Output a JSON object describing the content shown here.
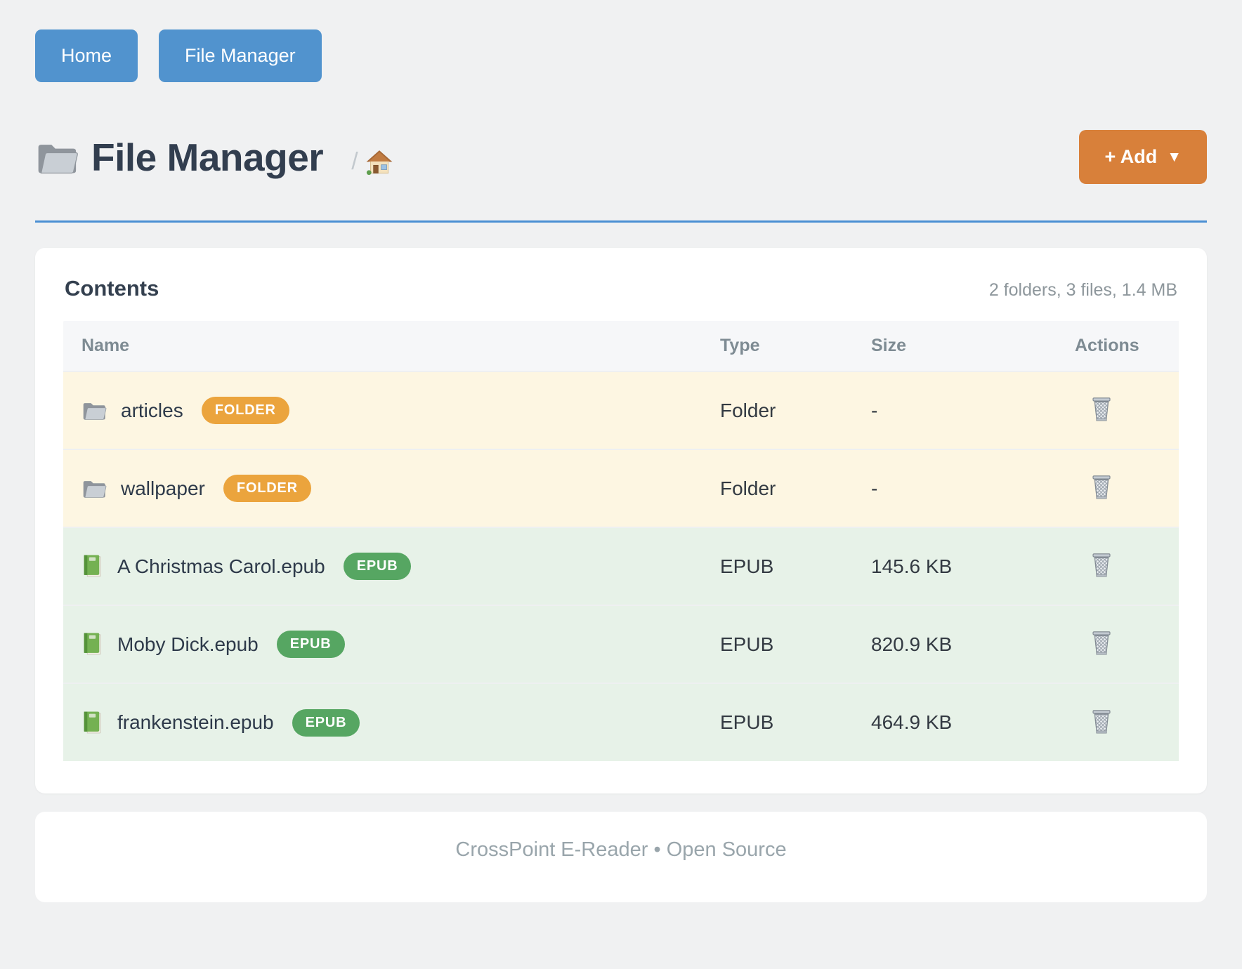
{
  "nav": {
    "buttons": [
      {
        "label": "Home"
      },
      {
        "label": "File Manager"
      }
    ]
  },
  "header": {
    "title": "File Manager",
    "breadcrumb_separator": "/",
    "add_button": {
      "label": "+ Add",
      "caret": "▼"
    }
  },
  "card": {
    "title": "Contents",
    "summary": "2 folders, 3 files, 1.4 MB",
    "columns": [
      "Name",
      "Type",
      "Size",
      "Actions"
    ],
    "rows": [
      {
        "name": "articles",
        "badge": "FOLDER",
        "type": "Folder",
        "size": "-",
        "kind": "folder"
      },
      {
        "name": "wallpaper",
        "badge": "FOLDER",
        "type": "Folder",
        "size": "-",
        "kind": "folder"
      },
      {
        "name": "A Christmas Carol.epub",
        "badge": "EPUB",
        "type": "EPUB",
        "size": "145.6 KB",
        "kind": "epub"
      },
      {
        "name": "Moby Dick.epub",
        "badge": "EPUB",
        "type": "EPUB",
        "size": "820.9 KB",
        "kind": "epub"
      },
      {
        "name": "frankenstein.epub",
        "badge": "EPUB",
        "type": "EPUB",
        "size": "464.9 KB",
        "kind": "epub"
      }
    ]
  },
  "footer": {
    "text": "CrossPoint E-Reader • Open Source"
  },
  "colors": {
    "accent_blue": "#4a8fd3",
    "nav_button_blue": "#5193ce",
    "add_button_orange": "#d8803a",
    "folder_badge": "#eba43d",
    "epub_badge": "#56a662",
    "folder_row_bg": "#fdf6e2",
    "epub_row_bg": "#e7f2e8"
  }
}
